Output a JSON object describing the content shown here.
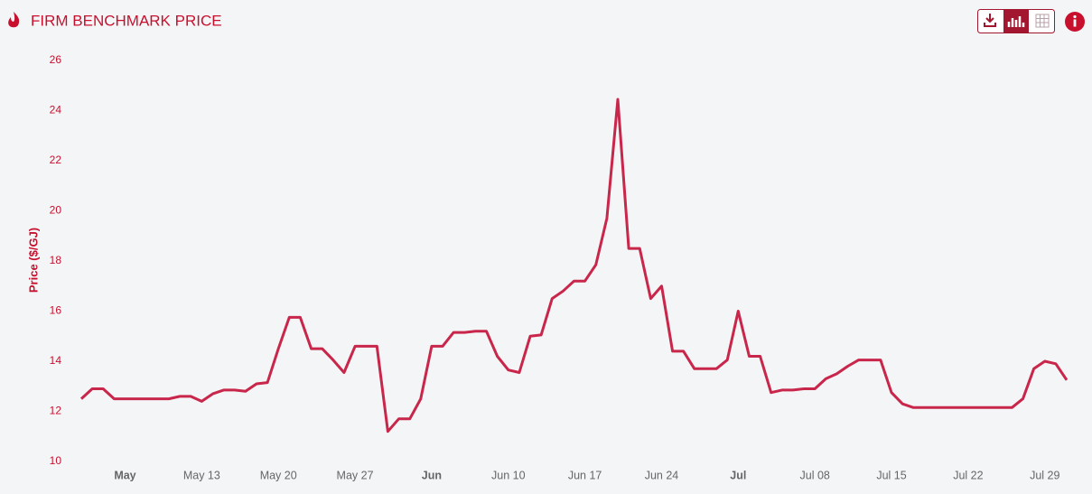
{
  "chart_data": {
    "type": "line",
    "title": "FIRM BENCHMARK PRICE",
    "y_label": "Price ($/GJ)",
    "x": [
      "May 02",
      "May 03",
      "May 04",
      "May 05",
      "May 06",
      "May 07",
      "May 08",
      "May 09",
      "May 10",
      "May 11",
      "May 12",
      "May 13",
      "May 14",
      "May 15",
      "May 16",
      "May 17",
      "May 18",
      "May 19",
      "May 20",
      "May 21",
      "May 22",
      "May 23",
      "May 24",
      "May 25",
      "May 26",
      "May 27",
      "May 28",
      "May 29",
      "May 30",
      "May 31",
      "Jun 01",
      "Jun 02",
      "Jun 03",
      "Jun 04",
      "Jun 05",
      "Jun 06",
      "Jun 07",
      "Jun 08",
      "Jun 09",
      "Jun 10",
      "Jun 11",
      "Jun 12",
      "Jun 13",
      "Jun 14",
      "Jun 15",
      "Jun 16",
      "Jun 17",
      "Jun 18",
      "Jun 19",
      "Jun 20",
      "Jun 21",
      "Jun 22",
      "Jun 23",
      "Jun 24",
      "Jun 25",
      "Jun 26",
      "Jun 27",
      "Jun 28",
      "Jun 29",
      "Jun 30",
      "Jul 01",
      "Jul 02",
      "Jul 03",
      "Jul 04",
      "Jul 05",
      "Jul 06",
      "Jul 07",
      "Jul 08",
      "Jul 09",
      "Jul 10",
      "Jul 11",
      "Jul 12",
      "Jul 13",
      "Jul 14",
      "Jul 15",
      "Jul 16",
      "Jul 17",
      "Jul 18",
      "Jul 19",
      "Jul 20",
      "Jul 21",
      "Jul 22",
      "Jul 23",
      "Jul 24",
      "Jul 25",
      "Jul 26",
      "Jul 27",
      "Jul 28",
      "Jul 29",
      "Jul 30",
      "Jul 31"
    ],
    "values": [
      12.5,
      12.9,
      12.9,
      12.5,
      12.5,
      12.5,
      12.5,
      12.5,
      12.5,
      12.6,
      12.6,
      12.4,
      12.7,
      12.85,
      12.85,
      12.8,
      13.1,
      13.15,
      14.5,
      15.75,
      15.75,
      14.5,
      14.5,
      14.05,
      13.55,
      14.6,
      14.6,
      14.6,
      11.2,
      11.7,
      11.7,
      12.5,
      14.6,
      14.6,
      15.15,
      15.15,
      15.2,
      15.2,
      14.2,
      13.65,
      13.55,
      15.0,
      15.05,
      16.5,
      16.8,
      17.2,
      17.2,
      17.85,
      19.7,
      24.45,
      18.5,
      18.5,
      16.5,
      17.0,
      14.4,
      14.4,
      13.7,
      13.7,
      13.7,
      14.05,
      16.0,
      14.2,
      14.2,
      12.75,
      12.85,
      12.85,
      12.9,
      12.9,
      13.3,
      13.5,
      13.8,
      14.05,
      14.05,
      14.05,
      12.75,
      12.3,
      12.15,
      12.15,
      12.15,
      12.15,
      12.15,
      12.15,
      12.15,
      12.15,
      12.15,
      12.15,
      12.5,
      13.7,
      14.0,
      13.9,
      13.25
    ],
    "color": "#c8264a",
    "ylim": [
      10,
      26
    ],
    "yticks": [
      10,
      12,
      14,
      16,
      18,
      20,
      22,
      24,
      26
    ],
    "xticks": [
      {
        "value": "May 06",
        "label": "May"
      },
      "May 13",
      "May 20",
      "May 27",
      {
        "value": "Jun 03",
        "label": "Jun"
      },
      "Jun 10",
      "Jun 17",
      "Jun 24",
      {
        "value": "Jul 01",
        "label": "Jul"
      },
      "Jul 08",
      "Jul 15",
      "Jul 22",
      "Jul 29"
    ],
    "grid": false
  }
}
